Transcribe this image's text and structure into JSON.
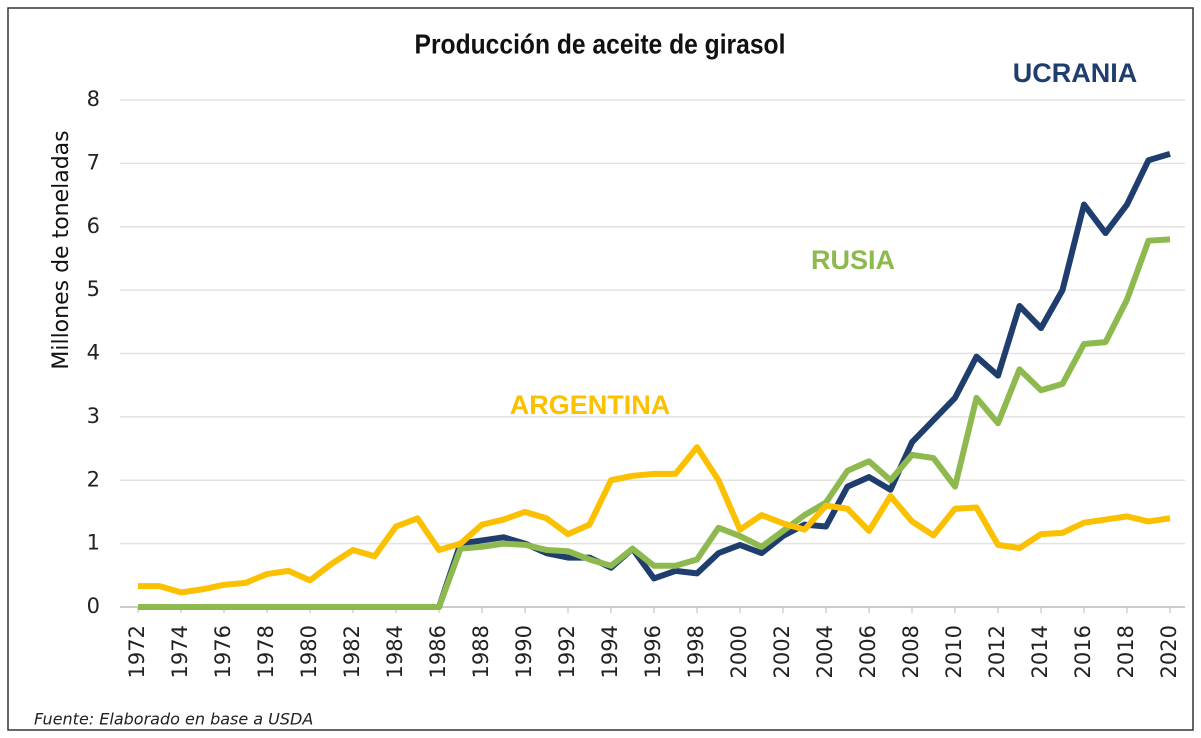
{
  "chart_data": {
    "type": "line",
    "title": "Producción de aceite de girasol",
    "ylabel": "Millones de toneladas",
    "source": "Fuente: Elaborado en base a USDA",
    "x": [
      1972,
      1973,
      1974,
      1975,
      1976,
      1977,
      1978,
      1979,
      1980,
      1981,
      1982,
      1983,
      1984,
      1985,
      1986,
      1987,
      1988,
      1989,
      1990,
      1991,
      1992,
      1993,
      1994,
      1995,
      1996,
      1997,
      1998,
      1999,
      2000,
      2001,
      2002,
      2003,
      2004,
      2005,
      2006,
      2007,
      2008,
      2009,
      2010,
      2011,
      2012,
      2013,
      2014,
      2015,
      2016,
      2017,
      2018,
      2019,
      2020
    ],
    "xlim": [
      1972,
      2020
    ],
    "xticks": [
      1972,
      1974,
      1976,
      1978,
      1980,
      1982,
      1984,
      1986,
      1988,
      1990,
      1992,
      1994,
      1996,
      1998,
      2000,
      2002,
      2004,
      2006,
      2008,
      2010,
      2012,
      2014,
      2016,
      2018,
      2020
    ],
    "ylim": [
      0,
      8
    ],
    "yticks": [
      0,
      1,
      2,
      3,
      4,
      5,
      6,
      7,
      8
    ],
    "grid": true,
    "series": [
      {
        "name": "UCRANIA",
        "color": "#1f3e6e",
        "values": [
          0,
          0,
          0,
          0,
          0,
          0,
          0,
          0,
          0,
          0,
          0,
          0,
          0,
          0,
          0,
          1.0,
          1.05,
          1.1,
          1.0,
          0.85,
          0.78,
          0.78,
          0.62,
          0.92,
          0.45,
          0.57,
          0.53,
          0.85,
          0.98,
          0.85,
          1.12,
          1.3,
          1.27,
          1.9,
          2.05,
          1.85,
          2.6,
          2.95,
          3.3,
          3.95,
          3.65,
          4.75,
          4.4,
          5.0,
          6.35,
          5.9,
          6.35,
          7.05,
          7.15
        ]
      },
      {
        "name": "RUSIA",
        "color": "#8db94f",
        "values": [
          0,
          0,
          0,
          0,
          0,
          0,
          0,
          0,
          0,
          0,
          0,
          0,
          0,
          0,
          0,
          0.92,
          0.95,
          1.0,
          0.98,
          0.9,
          0.88,
          0.75,
          0.65,
          0.92,
          0.65,
          0.65,
          0.75,
          1.25,
          1.12,
          0.95,
          1.2,
          1.45,
          1.65,
          2.15,
          2.3,
          2.0,
          2.4,
          2.35,
          1.9,
          3.3,
          2.9,
          3.75,
          3.42,
          3.52,
          4.15,
          4.18,
          4.85,
          5.78,
          5.8
        ]
      },
      {
        "name": "ARGENTINA",
        "color": "#fbc000",
        "values": [
          0.33,
          0.33,
          0.23,
          0.28,
          0.35,
          0.38,
          0.52,
          0.57,
          0.42,
          0.68,
          0.9,
          0.8,
          1.27,
          1.4,
          0.9,
          1.0,
          1.3,
          1.38,
          1.5,
          1.4,
          1.15,
          1.3,
          2.0,
          2.07,
          2.1,
          2.1,
          2.52,
          2.0,
          1.22,
          1.45,
          1.32,
          1.22,
          1.6,
          1.55,
          1.2,
          1.75,
          1.35,
          1.13,
          1.55,
          1.57,
          0.98,
          0.93,
          1.15,
          1.17,
          1.33,
          1.38,
          1.43,
          1.35,
          1.4
        ]
      }
    ]
  }
}
